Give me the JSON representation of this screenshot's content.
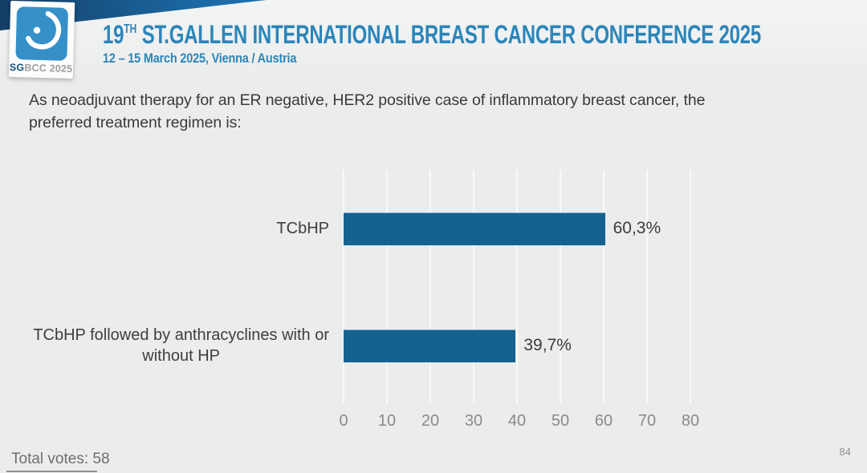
{
  "header": {
    "logo": {
      "icon": "sgbcc-breast-icon",
      "caption_bold": "SG",
      "caption_rest": "BCC 2025"
    },
    "title_number": "19",
    "title_superscript": "TH",
    "title_rest": " ST.GALLEN INTERNATIONAL BREAST CANCER CONFERENCE 2025",
    "subtitle": "12 – 15 March 2025, Vienna / Austria"
  },
  "question": {
    "line1": "As neoadjuvant therapy for an ER negative, HER2 positive case of inflammatory breast cancer, the",
    "line2": "preferred treatment regimen is:"
  },
  "chart_data": {
    "type": "bar",
    "orientation": "horizontal",
    "title": "",
    "categories": [
      "TCbHP",
      "TCbHP followed by anthracyclines with or without HP"
    ],
    "category_display_lines": [
      [
        "TCbHP"
      ],
      [
        "TCbHP followed by anthracyclines with or",
        "without HP"
      ]
    ],
    "values": [
      60.3,
      39.7
    ],
    "value_labels": [
      "60,3%",
      "39,7%"
    ],
    "xlim": [
      0,
      80
    ],
    "xticks": [
      0,
      10,
      20,
      30,
      40,
      50,
      60,
      70,
      80
    ],
    "grid": true,
    "legend": false,
    "bar_color": "#15618f",
    "gridline_color": "#f8f9f9",
    "axis_label_color": "#8a8a8a"
  },
  "footer": {
    "total_votes": "Total votes: 58",
    "page_number": "84"
  },
  "colors": {
    "accent_blue": "#2c85b9",
    "band_dark_blue": "#143e66",
    "logo_blue": "#3590c8",
    "background": "#ebecec"
  }
}
